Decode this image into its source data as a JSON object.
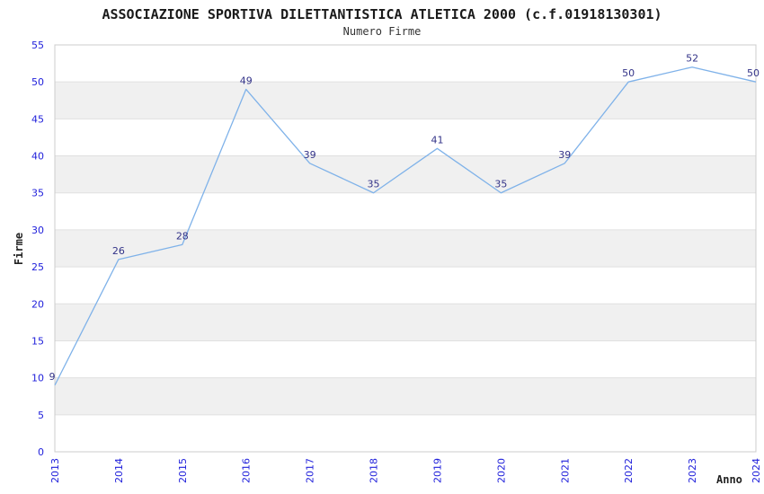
{
  "chart_data": {
    "type": "line",
    "title": "ASSOCIAZIONE SPORTIVA DILETTANTISTICA ATLETICA 2000 (c.f.01918130301)",
    "subtitle": "Numero Firme",
    "xlabel": "Anno",
    "ylabel": "Firme",
    "x": [
      "2013",
      "2014",
      "2015",
      "2016",
      "2017",
      "2018",
      "2019",
      "2020",
      "2021",
      "2022",
      "2023",
      "2024"
    ],
    "values": [
      9,
      26,
      28,
      49,
      39,
      35,
      41,
      35,
      39,
      50,
      52,
      50
    ],
    "ylim": [
      0,
      55
    ],
    "ytick_step": 5,
    "yticks": [
      0,
      5,
      10,
      15,
      20,
      25,
      30,
      35,
      40,
      45,
      50,
      55
    ],
    "grid": "horizontal gridlines every 5 units with alternating shaded bands",
    "legend": "none",
    "point_labels_visible": true,
    "colors": {
      "line": "#7fb2e9",
      "tick_label": "#2121db",
      "value_label": "#333388",
      "band": "#f0f0f0",
      "grid": "#e0e0e0",
      "border": "#cccccc",
      "title_text": "#1a1a1a",
      "background": "#ffffff"
    }
  }
}
